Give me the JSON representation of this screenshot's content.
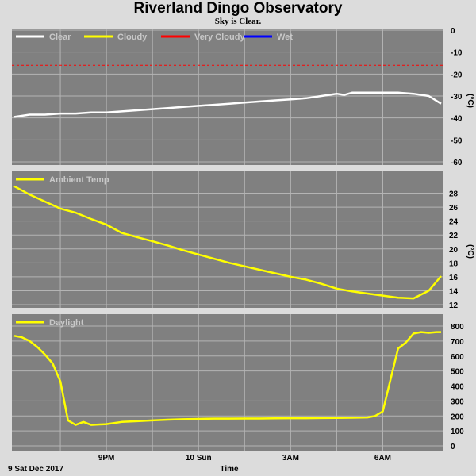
{
  "title": "Riverland Dingo Observatory",
  "subtitle": "Sky is Clear.",
  "footer": {
    "date_label": "9 Sat Dec 2017",
    "xlabel": "Time"
  },
  "colors": {
    "background": "#dcdcdc",
    "panel": "#808080",
    "grid": "#b4b4b4",
    "clear": "#ffffff",
    "cloudy": "#ffff00",
    "very_cloudy": "#ff0000",
    "wet": "#0000ff",
    "legend_text": "#c8c8c8"
  },
  "chart_data": [
    {
      "type": "line",
      "panel": "sky",
      "ylabel": "(°C)",
      "ylim": [
        -60,
        0
      ],
      "yticks": [
        0,
        -10,
        -20,
        -30,
        -40,
        -50,
        -60
      ],
      "legend": [
        {
          "name": "Clear",
          "color": "#ffffff"
        },
        {
          "name": "Cloudy",
          "color": "#ffff00"
        },
        {
          "name": "Very Cloudy",
          "color": "#ff0000"
        },
        {
          "name": "Wet",
          "color": "#0000ff"
        }
      ],
      "threshold": {
        "name": "Very Cloudy",
        "value": -16,
        "style": "dashed"
      },
      "x_range_hours": [
        18.0,
        7.9
      ],
      "series": [
        {
          "name": "Clear",
          "x": [
            18.0,
            18.5,
            19.0,
            19.5,
            20.0,
            20.5,
            21.0,
            21.5,
            22.0,
            22.5,
            23.0,
            23.5,
            0.0,
            0.5,
            1.0,
            1.5,
            2.0,
            2.5,
            3.0,
            3.5,
            4.0,
            4.25,
            4.5,
            4.75,
            5.0,
            5.5,
            6.0,
            6.5,
            7.0,
            7.5,
            7.9
          ],
          "y": [
            -39.5,
            -38.5,
            -38.5,
            -38.0,
            -38.0,
            -37.5,
            -37.5,
            -37.0,
            -36.5,
            -36.0,
            -35.5,
            -35.0,
            -34.5,
            -34.0,
            -33.5,
            -33.0,
            -32.5,
            -32.0,
            -31.5,
            -31.0,
            -30.0,
            -29.5,
            -29.0,
            -29.5,
            -28.5,
            -28.5,
            -28.5,
            -28.5,
            -29.0,
            -30.0,
            -33.5
          ]
        }
      ]
    },
    {
      "type": "line",
      "panel": "ambient",
      "ylabel": "(°C)",
      "ylim": [
        12,
        30
      ],
      "yticks": [
        28,
        26,
        24,
        22,
        20,
        18,
        16,
        14,
        12
      ],
      "legend": [
        {
          "name": "Ambient Temp",
          "color": "#ffff00"
        }
      ],
      "series": [
        {
          "name": "Ambient Temp",
          "x": [
            18.0,
            18.5,
            19.0,
            19.5,
            20.0,
            20.5,
            21.0,
            21.5,
            22.0,
            22.5,
            23.0,
            23.5,
            0.0,
            0.5,
            1.0,
            1.5,
            2.0,
            2.5,
            3.0,
            3.5,
            4.0,
            4.5,
            5.0,
            5.5,
            6.0,
            6.5,
            7.0,
            7.5,
            7.9
          ],
          "y": [
            29.0,
            27.8,
            26.8,
            25.8,
            25.2,
            24.3,
            23.5,
            22.3,
            21.7,
            21.1,
            20.5,
            19.8,
            19.2,
            18.6,
            18.0,
            17.5,
            17.0,
            16.5,
            16.0,
            15.6,
            15.0,
            14.3,
            13.9,
            13.6,
            13.3,
            13.0,
            12.9,
            14.0,
            16.1
          ]
        }
      ]
    },
    {
      "type": "line",
      "panel": "daylight",
      "ylim": [
        0,
        800
      ],
      "yticks": [
        800,
        700,
        600,
        500,
        400,
        300,
        200,
        100,
        0
      ],
      "legend": [
        {
          "name": "Daylight",
          "color": "#ffff00"
        }
      ],
      "series": [
        {
          "name": "Daylight",
          "x": [
            18.0,
            18.25,
            18.5,
            18.75,
            19.0,
            19.25,
            19.5,
            19.75,
            20.0,
            20.25,
            20.5,
            21.0,
            21.5,
            22.0,
            22.5,
            23.0,
            23.5,
            0.0,
            0.5,
            1.0,
            1.5,
            2.0,
            2.5,
            3.0,
            3.5,
            4.0,
            4.5,
            5.0,
            5.5,
            5.75,
            6.0,
            6.25,
            6.5,
            6.75,
            7.0,
            7.25,
            7.5,
            7.75,
            7.9
          ],
          "y": [
            735,
            725,
            700,
            660,
            610,
            550,
            430,
            170,
            140,
            160,
            140,
            145,
            160,
            165,
            170,
            175,
            178,
            180,
            182,
            182,
            183,
            183,
            184,
            185,
            185,
            186,
            187,
            188,
            190,
            200,
            230,
            440,
            650,
            690,
            750,
            760,
            755,
            760,
            760
          ]
        }
      ]
    }
  ],
  "x_ticks": [
    {
      "label": "9PM",
      "hour": 21.0
    },
    {
      "label": "10 Sun",
      "hour": 0.0
    },
    {
      "label": "3AM",
      "hour": 3.0
    },
    {
      "label": "6AM",
      "hour": 6.0
    }
  ],
  "x_gridlines_hours": [
    19.5,
    21.0,
    22.5,
    0.0,
    1.5,
    3.0,
    4.5,
    6.0
  ]
}
